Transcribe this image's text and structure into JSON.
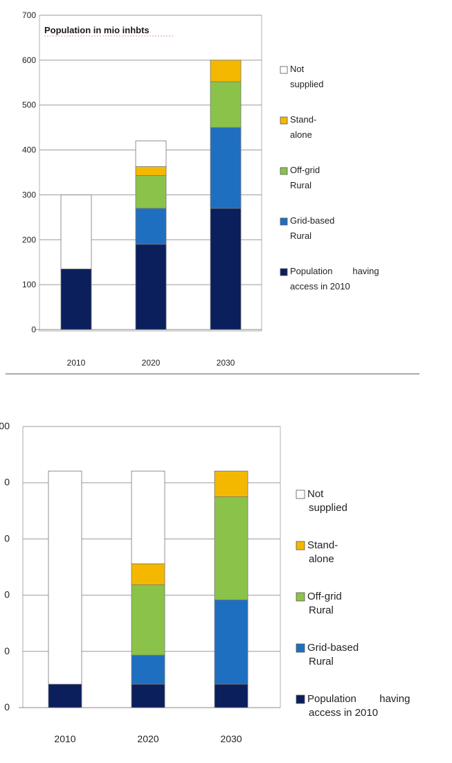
{
  "chart_data": [
    {
      "type": "bar",
      "stacked": true,
      "title": "Population in mio inhbts",
      "categories": [
        "2010",
        "2020",
        "2030"
      ],
      "series": [
        {
          "name": "Population having access in 2010",
          "values": [
            135,
            190,
            270
          ],
          "color": "#0a1f5c"
        },
        {
          "name": "Grid-based Rural",
          "values": [
            0,
            80,
            180
          ],
          "color": "#1f6fc1"
        },
        {
          "name": "Off-grid Rural",
          "values": [
            0,
            73,
            102
          ],
          "color": "#8bc34a"
        },
        {
          "name": "Stand-alone",
          "values": [
            0,
            20,
            48
          ],
          "color": "#f5b800"
        },
        {
          "name": "Not supplied",
          "values": [
            165,
            57,
            0
          ],
          "color": "#ffffff"
        }
      ],
      "y_ticks": [
        "0",
        "100",
        "200",
        "300",
        "400",
        "500",
        "600",
        "700"
      ],
      "ylim": [
        0,
        700
      ],
      "legend_lines": [
        [
          "Not",
          "supplied"
        ],
        [
          "Stand-",
          "alone"
        ],
        [
          "Off-grid",
          "Rural"
        ],
        [
          "Grid-based",
          "Rural"
        ],
        [
          "Population        having",
          "access in 2010"
        ]
      ],
      "legend_order": [
        4,
        3,
        2,
        1,
        0
      ],
      "grid": true,
      "legend_position": "right"
    },
    {
      "type": "bar",
      "stacked": true,
      "categories": [
        "2010",
        "2020",
        "2030"
      ],
      "series": [
        {
          "name": "Population having access in 2010",
          "values": [
            50,
            50,
            50
          ],
          "color": "#0a1f5c"
        },
        {
          "name": "Grid-based Rural",
          "values": [
            0,
            62,
            180
          ],
          "color": "#1f6fc1"
        },
        {
          "name": "Off-grid Rural",
          "values": [
            0,
            150,
            220
          ],
          "color": "#8bc34a"
        },
        {
          "name": "Stand-alone",
          "values": [
            0,
            45,
            55
          ],
          "color": "#f5b800"
        },
        {
          "name": "Not supplied",
          "values": [
            455,
            198,
            0
          ],
          "color": "#ffffff"
        }
      ],
      "y_ticks": [
        "0",
        "",
        "",
        "",
        "",
        "00"
      ],
      "y_tick_partial": [
        "0",
        "0",
        "0",
        "0"
      ],
      "ylim": [
        0,
        600
      ],
      "legend_lines": [
        [
          "Not",
          "supplied"
        ],
        [
          "Stand-",
          "alone"
        ],
        [
          "Off-grid",
          "Rural"
        ],
        [
          "Grid-based",
          "Rural"
        ],
        [
          "Population        having",
          "access in 2010"
        ]
      ],
      "legend_order": [
        4,
        3,
        2,
        1,
        0
      ],
      "grid": true,
      "legend_position": "right"
    }
  ]
}
